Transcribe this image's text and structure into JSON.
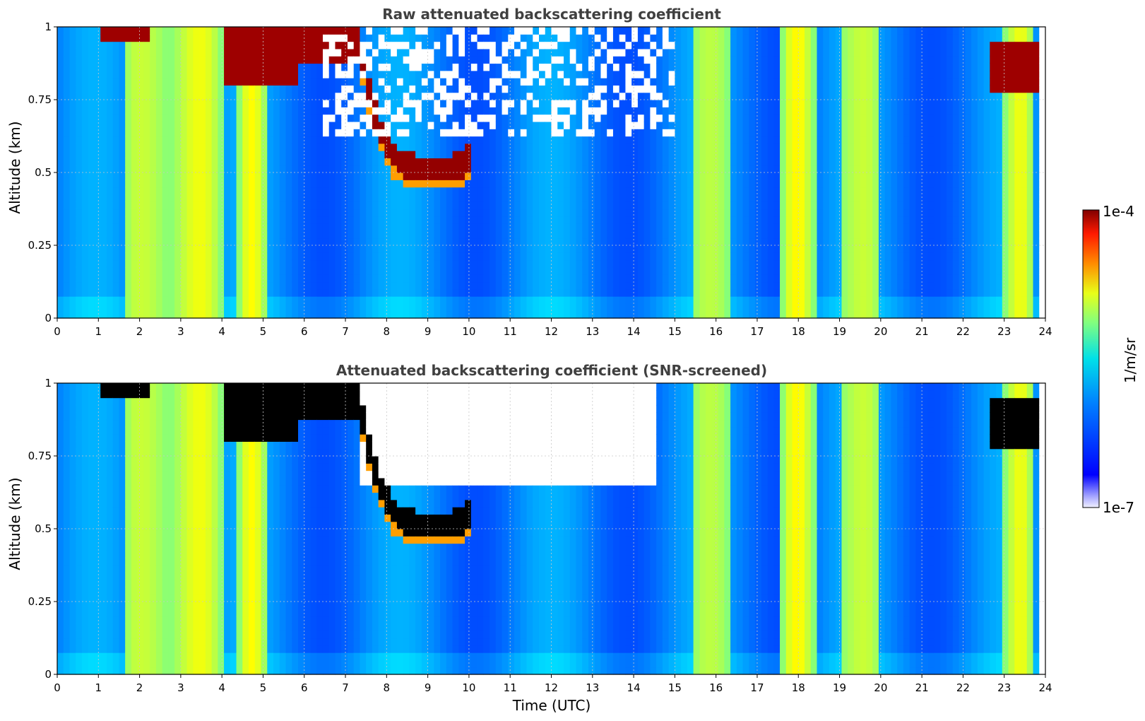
{
  "chart_data": [
    {
      "type": "heatmap",
      "title": "Raw attenuated backscattering coefficient",
      "xlabel": "",
      "ylabel": "Altitude (km)",
      "xlim": [
        0,
        24
      ],
      "ylim": [
        0,
        1
      ],
      "xticks": [
        "0",
        "1",
        "2",
        "3",
        "4",
        "5",
        "6",
        "7",
        "8",
        "9",
        "10",
        "11",
        "12",
        "13",
        "14",
        "15",
        "16",
        "17",
        "18",
        "19",
        "20",
        "21",
        "22",
        "23",
        "24"
      ],
      "yticks": [
        "0",
        "0.25",
        "0.5",
        "0.75",
        "1"
      ],
      "grid": true,
      "screened": false,
      "colormap": "jet",
      "colorscale": "log",
      "features": {
        "cloud_layers": [
          {
            "t": [
              1.1,
              2.2
            ],
            "alt": [
              0.95,
              1.0
            ]
          },
          {
            "t": [
              4.0,
              5.8
            ],
            "alt": [
              0.8,
              1.0
            ]
          },
          {
            "t": [
              5.8,
              7.3
            ],
            "alt": [
              0.88,
              1.0
            ]
          },
          {
            "t": [
              7.3,
              10.0
            ],
            "alt": [
              0.46,
              1.0
            ]
          },
          {
            "t": [
              22.7,
              23.8
            ],
            "alt": [
              0.78,
              0.95
            ]
          }
        ],
        "bright_columns": [
          [
            1.6,
            2.7
          ],
          [
            2.7,
            4.0
          ],
          [
            4.4,
            5.1
          ],
          [
            15.4,
            16.3
          ],
          [
            17.6,
            18.4
          ],
          [
            19.0,
            20.0
          ],
          [
            23.0,
            23.7
          ]
        ],
        "data_end_time": 23.8
      }
    },
    {
      "type": "heatmap",
      "title": "Attenuated backscattering coefficient (SNR-screened)",
      "xlabel": "Time (UTC)",
      "ylabel": "Altitude (km)",
      "xlim": [
        0,
        24
      ],
      "ylim": [
        0,
        1
      ],
      "xticks": [
        "0",
        "1",
        "2",
        "3",
        "4",
        "5",
        "6",
        "7",
        "8",
        "9",
        "10",
        "11",
        "12",
        "13",
        "14",
        "15",
        "16",
        "17",
        "18",
        "19",
        "20",
        "21",
        "22",
        "23",
        "24"
      ],
      "yticks": [
        "0",
        "0.25",
        "0.5",
        "0.75",
        "1"
      ],
      "grid": true,
      "screened": true,
      "colormap": "jet",
      "colorscale": "log",
      "features": {
        "screened_region": {
          "t": [
            7.3,
            14.5
          ],
          "alt": [
            0.65,
            1.0
          ]
        },
        "saturated_color": "#000000",
        "data_end_time": 23.8
      }
    }
  ],
  "colorbar": {
    "max_label": "1e-4",
    "min_label": "1e-7",
    "unit_label": "1/m/sr",
    "range": [
      1e-07,
      0.0001
    ],
    "colormap": "jet"
  }
}
